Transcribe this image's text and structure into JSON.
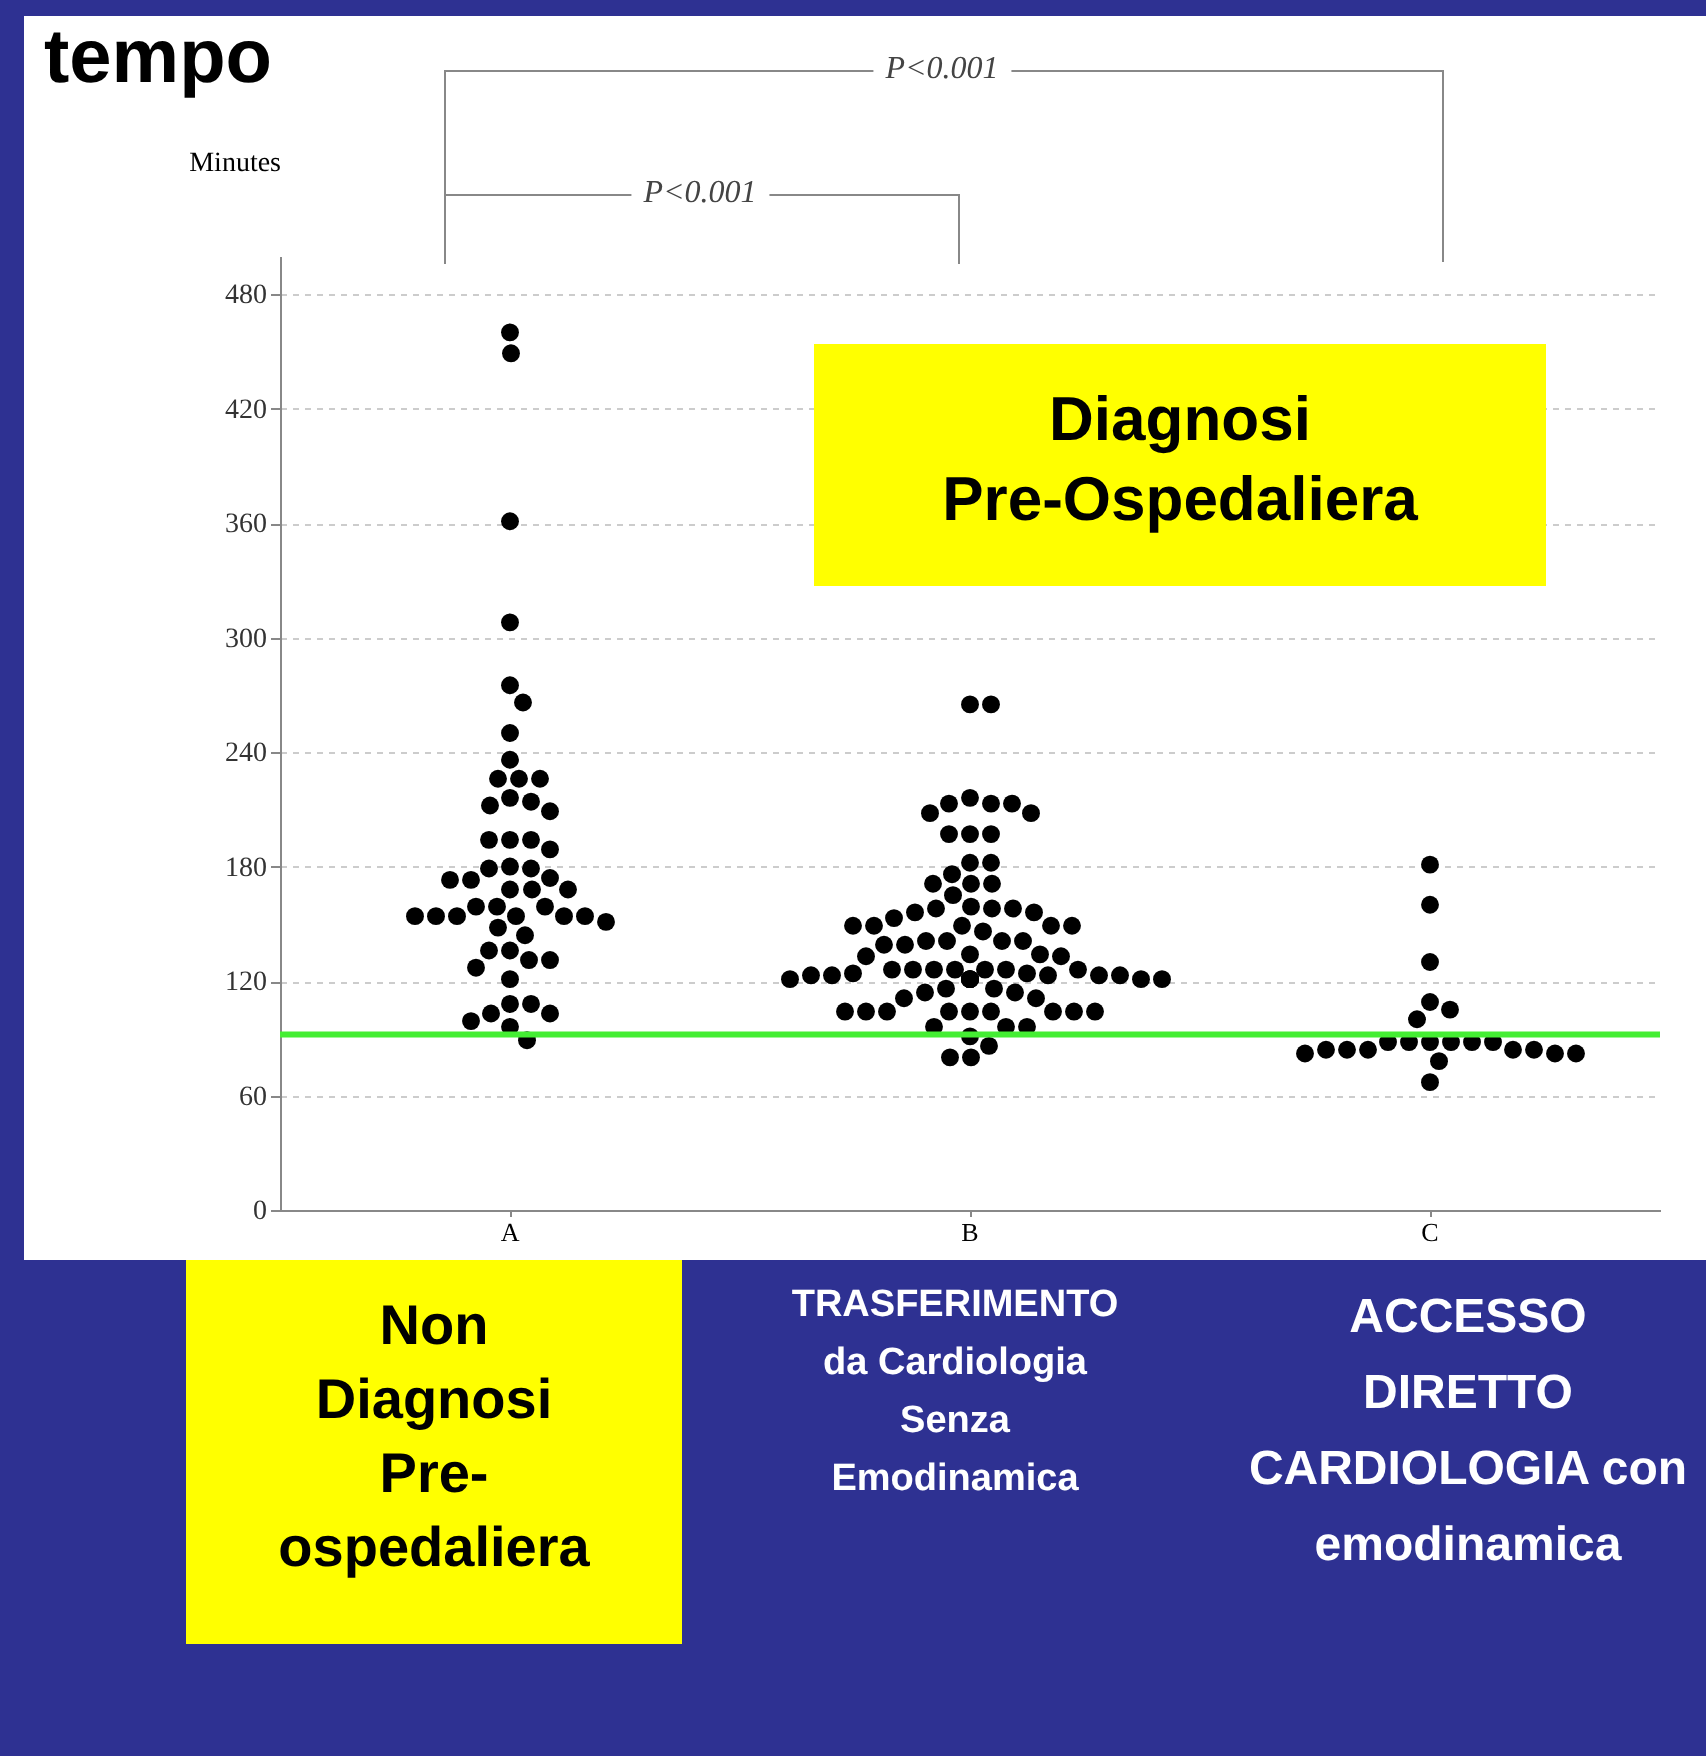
{
  "chart_data": {
    "type": "scatter",
    "title": "tempo",
    "ylabel": "Minutes",
    "categories": [
      "A",
      "B",
      "C"
    ],
    "ylim": [
      0,
      500
    ],
    "yticks": [
      0,
      60,
      120,
      180,
      240,
      300,
      360,
      420,
      480
    ],
    "grid": "y",
    "marker": "circle",
    "series": [
      {
        "color": "#000000",
        "x": [
          "A",
          "A",
          "A",
          "A",
          "A",
          "A",
          "A",
          "A",
          "A",
          "A",
          "A",
          "A",
          "A",
          "A",
          "A",
          "A",
          "A",
          "A",
          "A",
          "A",
          "A",
          "A",
          "A",
          "A",
          "A",
          "A",
          "A",
          "A",
          "A",
          "A",
          "A",
          "A",
          "A",
          "A",
          "A",
          "A",
          "A",
          "A",
          "A",
          "A",
          "A",
          "A",
          "A",
          "A",
          "A",
          "A",
          "A",
          "A",
          "A",
          "A",
          "A",
          "A",
          "A"
        ],
        "values": [
          460,
          449,
          361,
          308,
          275,
          266,
          250,
          236,
          226,
          226,
          226,
          216,
          214,
          212,
          209,
          194,
          194,
          194,
          189,
          180,
          179,
          179,
          174,
          173,
          173,
          168,
          168,
          168,
          159,
          159,
          159,
          154,
          154,
          154,
          154,
          154,
          154,
          151,
          148,
          144,
          136,
          136,
          131,
          131,
          127,
          121,
          108,
          108,
          103,
          103,
          99,
          96,
          89
        ]
      },
      {
        "color": "#000000",
        "x": [
          "B",
          "B",
          "B",
          "B",
          "B",
          "B",
          "B",
          "B",
          "B",
          "B",
          "B",
          "B",
          "B",
          "B",
          "B",
          "B",
          "B",
          "B",
          "B",
          "B",
          "B",
          "B",
          "B",
          "B",
          "B",
          "B",
          "B",
          "B",
          "B",
          "B",
          "B",
          "B",
          "B",
          "B",
          "B",
          "B",
          "B",
          "B",
          "B",
          "B",
          "B",
          "B",
          "B",
          "B",
          "B",
          "B",
          "B",
          "B",
          "B",
          "B",
          "B",
          "B",
          "B",
          "B",
          "B",
          "B",
          "B",
          "B",
          "B",
          "B",
          "B",
          "B",
          "B",
          "B",
          "B",
          "B",
          "B",
          "B",
          "B",
          "B",
          "B",
          "B",
          "B",
          "B",
          "B",
          "B",
          "B",
          "B",
          "B",
          "B",
          "B",
          "B",
          "B",
          "B"
        ],
        "values": [
          265,
          265,
          216,
          213,
          213,
          213,
          208,
          208,
          197,
          197,
          197,
          182,
          182,
          176,
          171,
          171,
          171,
          165,
          159,
          158,
          158,
          158,
          156,
          156,
          153,
          149,
          149,
          149,
          149,
          149,
          146,
          141,
          141,
          141,
          141,
          139,
          139,
          134,
          134,
          133,
          133,
          126,
          126,
          126,
          126,
          126,
          126,
          126,
          124,
          124,
          123,
          123,
          123,
          123,
          123,
          121,
          121,
          121,
          121,
          121,
          121,
          121,
          116,
          116,
          114,
          114,
          111,
          111,
          104,
          104,
          104,
          104,
          104,
          104,
          104,
          104,
          104,
          96,
          96,
          96,
          91,
          86,
          80,
          80
        ]
      },
      {
        "color": "#000000",
        "x": [
          "C",
          "C",
          "C",
          "C",
          "C",
          "C",
          "C",
          "C",
          "C",
          "C",
          "C",
          "C",
          "C",
          "C",
          "C",
          "C",
          "C",
          "C",
          "C",
          "C",
          "C",
          "C"
        ],
        "values": [
          181,
          160,
          130,
          109,
          105,
          100,
          88,
          88,
          88,
          88,
          88,
          88,
          84,
          84,
          84,
          84,
          84,
          82,
          82,
          82,
          78,
          67
        ]
      }
    ],
    "ref_lines": [
      {
        "axis": "y",
        "value": 92,
        "color": "#44ee33"
      }
    ],
    "annotations": [
      "P<0.001",
      "P<0.001",
      "Diagnosi Pre-Ospedaliera",
      "Non Diagnosi Pre-ospedaliera",
      "TRASFERIMENTO da Cardiologia Senza Emodinamica",
      "ACCESSO DIRETTO CARDIOLOGIA con emodinamica"
    ]
  }
}
